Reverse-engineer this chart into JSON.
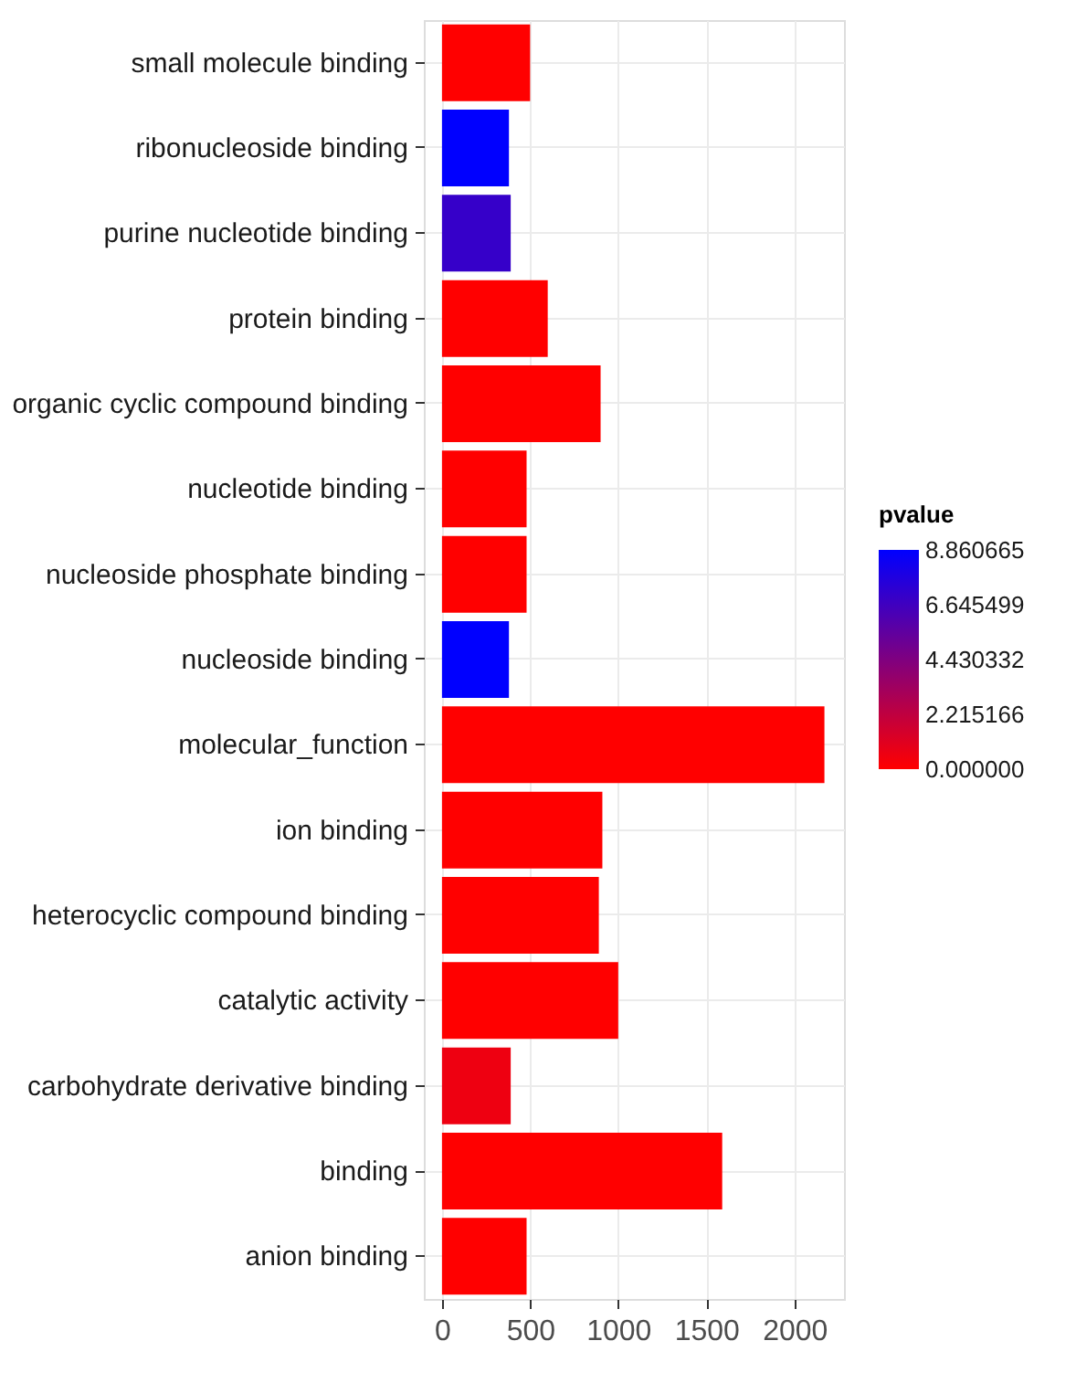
{
  "chart_data": {
    "type": "bar",
    "orientation": "horizontal",
    "categories": [
      "small molecule binding",
      "ribonucleoside binding",
      "purine nucleotide binding",
      "protein binding",
      "organic cyclic compound binding",
      "nucleotide binding",
      "nucleoside phosphate binding",
      "nucleoside binding",
      "molecular_function",
      "ion binding",
      "heterocyclic compound binding",
      "catalytic activity",
      "carbohydrate derivative binding",
      "binding",
      "anion binding"
    ],
    "values": [
      500,
      380,
      390,
      600,
      900,
      480,
      480,
      380,
      2170,
      910,
      890,
      1000,
      390,
      1590,
      480
    ],
    "cvalues": [
      0,
      8.860665,
      7.0,
      0,
      0,
      0,
      0,
      8.860665,
      0,
      0,
      0,
      0,
      0.6,
      0,
      0
    ],
    "xlim": [
      -103,
      2281
    ],
    "xticks": [
      0,
      500,
      1000,
      1500,
      2000
    ],
    "clabel": "pvalue",
    "clim": [
      0,
      8.860665
    ],
    "cticks": [
      {
        "value": 0,
        "label": "0.000000"
      },
      2.215166,
      4.430332,
      6.645499,
      8.860665
    ],
    "grid": true
  }
}
